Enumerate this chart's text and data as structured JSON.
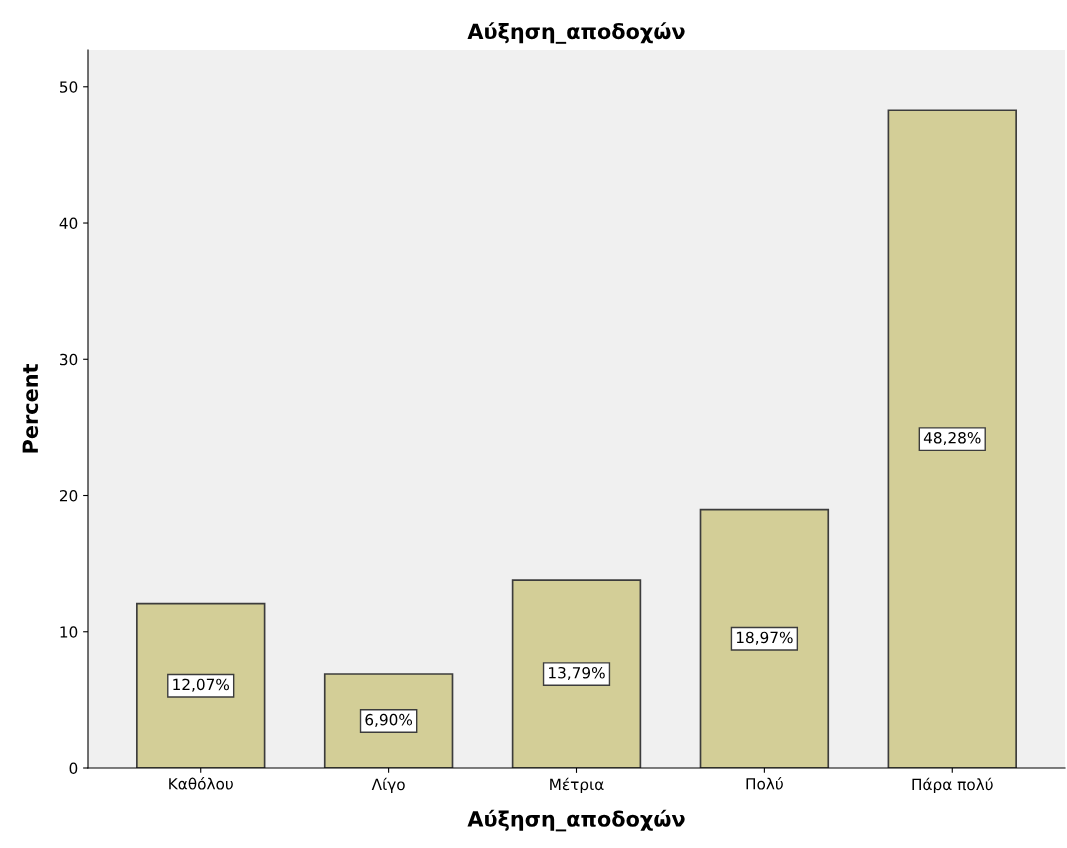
{
  "chart_data": {
    "type": "bar",
    "title": "Αύξηση_αποδοχών",
    "xlabel": "Αύξηση_αποδοχών",
    "ylabel": "Percent",
    "categories": [
      "Καθόλου",
      "Λίγο",
      "Μέτρια",
      "Πολύ",
      "Πάρα πολύ"
    ],
    "values": [
      12.07,
      6.9,
      13.79,
      18.97,
      48.28
    ],
    "value_labels": [
      "12,07%",
      "6,90%",
      "13,79%",
      "18,97%",
      "48,28%"
    ],
    "color": "#d3ce97",
    "ylim": [
      0,
      52.7
    ],
    "yticks": [
      0,
      10,
      20,
      30,
      40,
      50
    ],
    "grid": false,
    "legend": false
  }
}
